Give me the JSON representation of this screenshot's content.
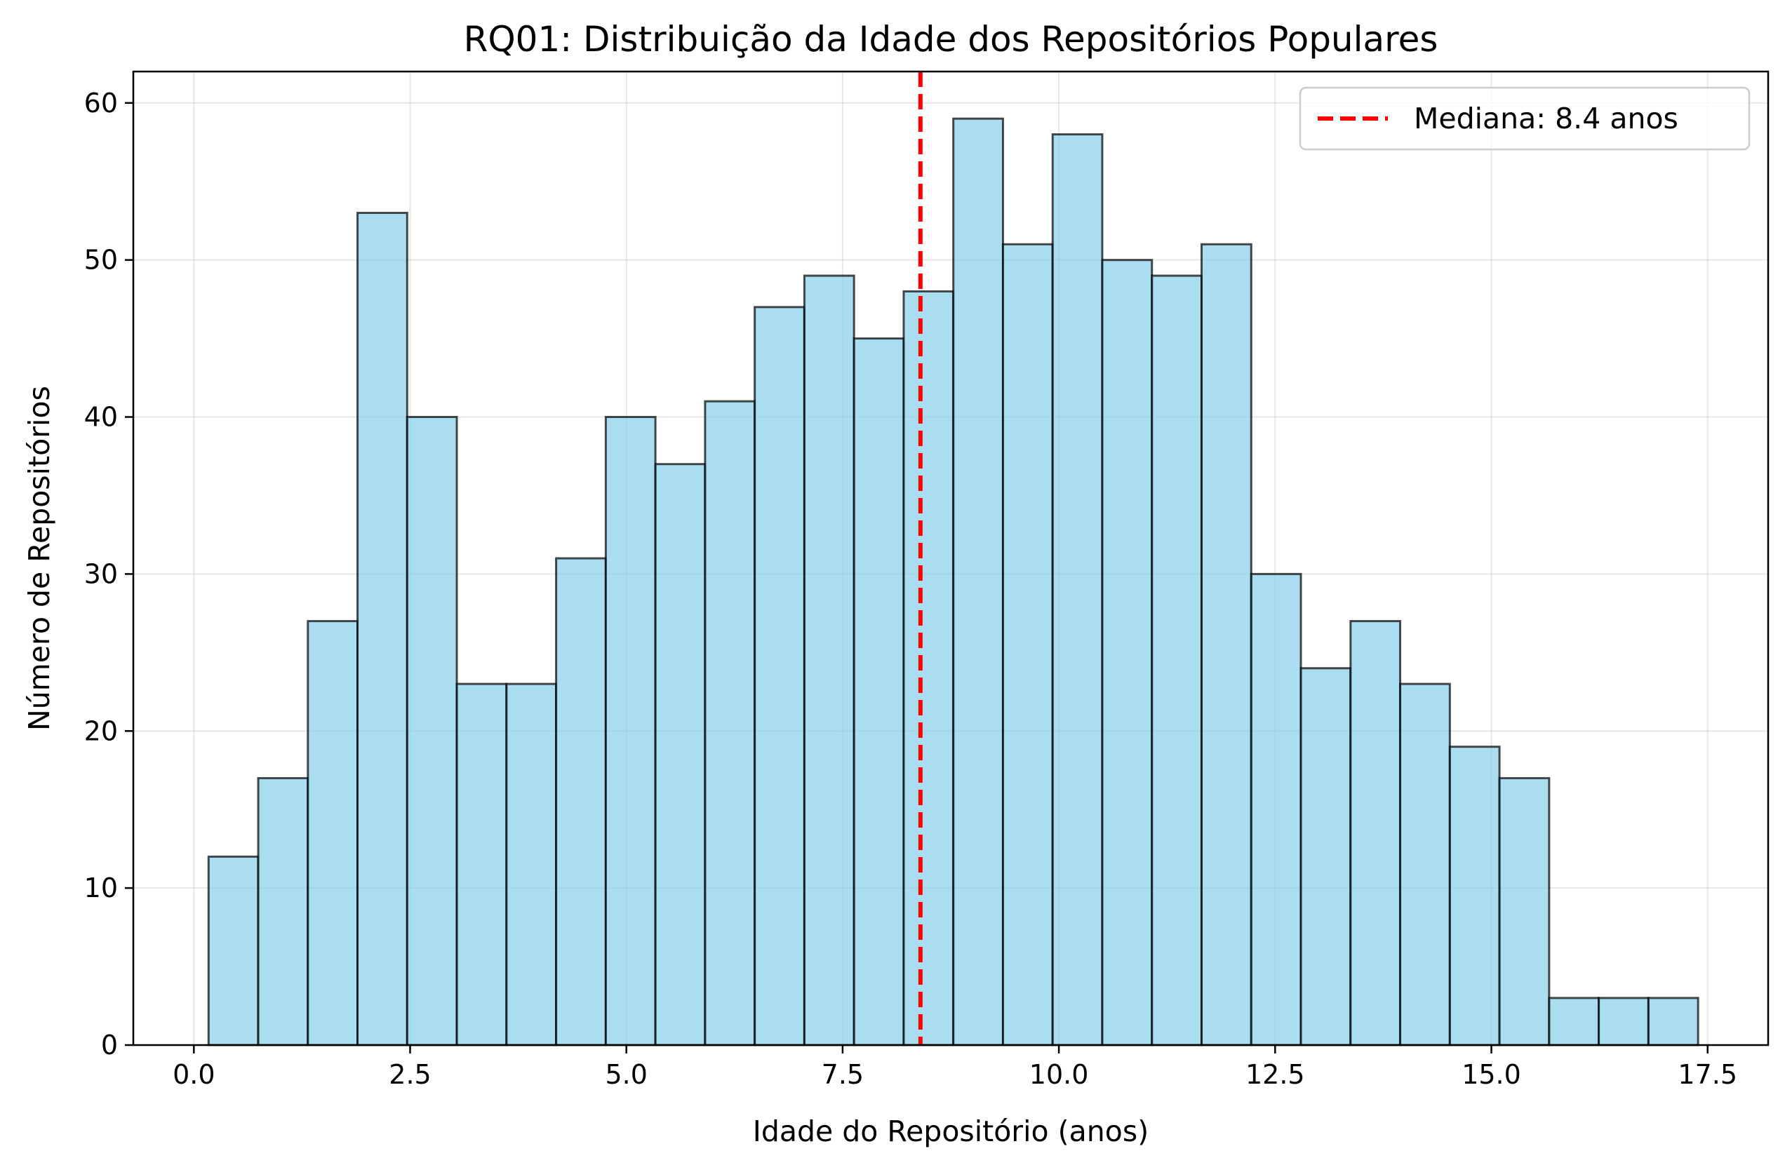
{
  "chart_data": {
    "type": "bar",
    "title": "RQ01: Distribuição da Idade dos Repositórios Populares",
    "xlabel": "Idade do Repositório (anos)",
    "ylabel": "Número de Repositórios",
    "xlim": [
      -0.7,
      18.2
    ],
    "ylim": [
      0,
      62
    ],
    "grid": true,
    "legend_position": "top-right",
    "bin_start": 0.17,
    "bin_width": 0.574,
    "values": [
      12,
      17,
      27,
      53,
      40,
      23,
      23,
      31,
      40,
      37,
      41,
      47,
      49,
      45,
      48,
      59,
      51,
      58,
      50,
      49,
      51,
      30,
      24,
      27,
      23,
      19,
      17,
      3,
      3,
      3
    ],
    "x_ticks": [
      0.0,
      2.5,
      5.0,
      7.5,
      10.0,
      12.5,
      15.0,
      17.5
    ],
    "x_tick_labels": [
      "0.0",
      "2.5",
      "5.0",
      "7.5",
      "10.0",
      "12.5",
      "15.0",
      "17.5"
    ],
    "y_ticks": [
      0,
      10,
      20,
      30,
      40,
      50,
      60
    ],
    "y_tick_labels": [
      "0",
      "10",
      "20",
      "30",
      "40",
      "50",
      "60"
    ],
    "median": 8.4,
    "legend": [
      {
        "label": "Mediana: 8.4 anos",
        "color": "#ff0000",
        "style": "dashed"
      }
    ],
    "colors": {
      "bar_fill": "#87CEEB",
      "bar_edge": "#000000",
      "median_line": "#ff0000"
    }
  }
}
